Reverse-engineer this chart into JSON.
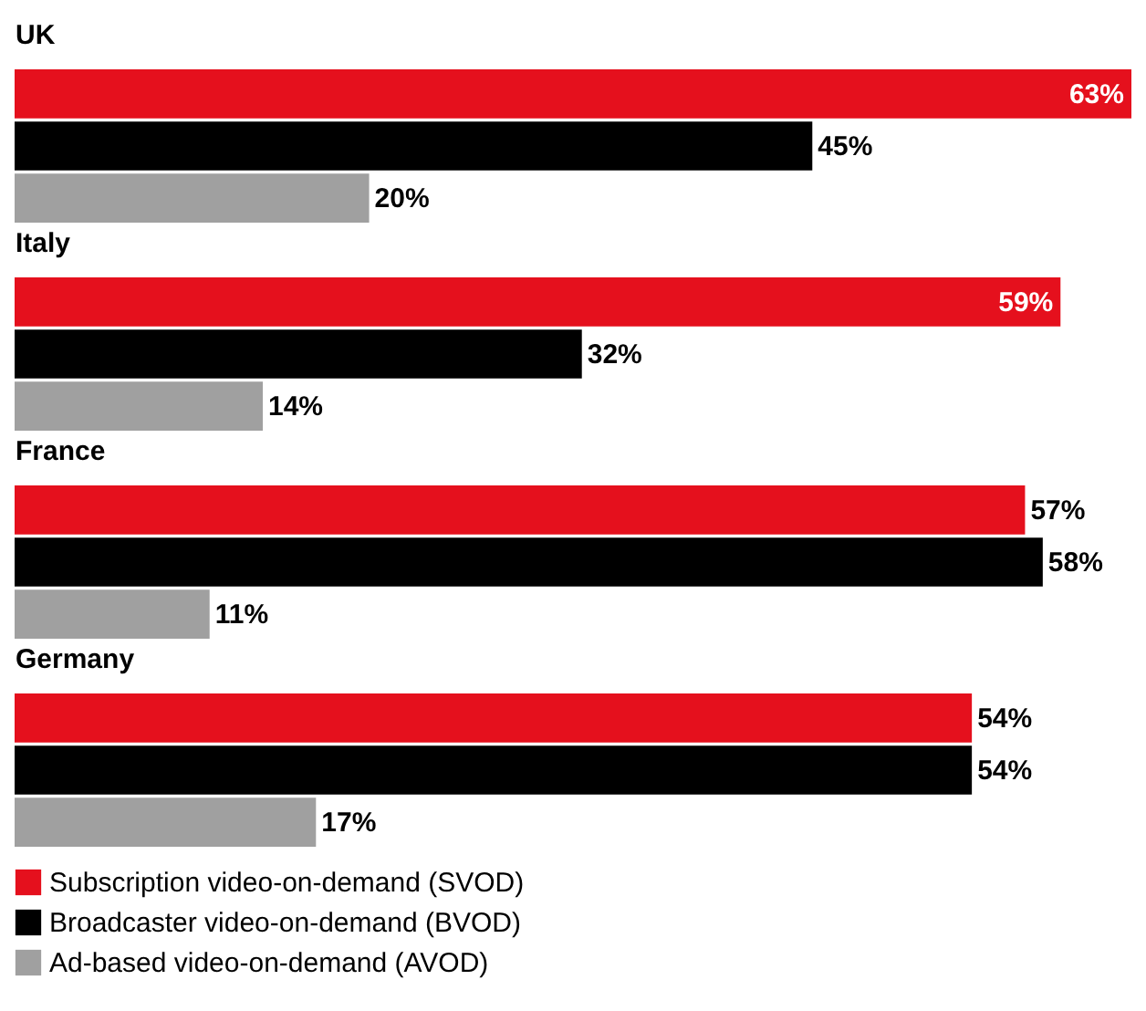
{
  "chart_data": {
    "type": "bar",
    "orientation": "horizontal",
    "categories": [
      "UK",
      "Italy",
      "France",
      "Germany"
    ],
    "legend": "bottom",
    "series": [
      {
        "name": "Subscription video-on-demand (SVOD)",
        "color": "#e5101d",
        "values": [
          63,
          59,
          57,
          54
        ],
        "value_labels": [
          "63%",
          "59%",
          "57%",
          "54%"
        ]
      },
      {
        "name": "Broadcaster video-on-demand (BVOD)",
        "color": "#000000",
        "values": [
          45,
          32,
          58,
          54
        ],
        "value_labels": [
          "45%",
          "32%",
          "58%",
          "54%"
        ]
      },
      {
        "name": "Ad-based video-on-demand (AVOD)",
        "color": "#a0a0a0",
        "values": [
          20,
          14,
          11,
          17
        ],
        "value_labels": [
          "20%",
          "14%",
          "11%",
          "17%"
        ]
      }
    ]
  }
}
